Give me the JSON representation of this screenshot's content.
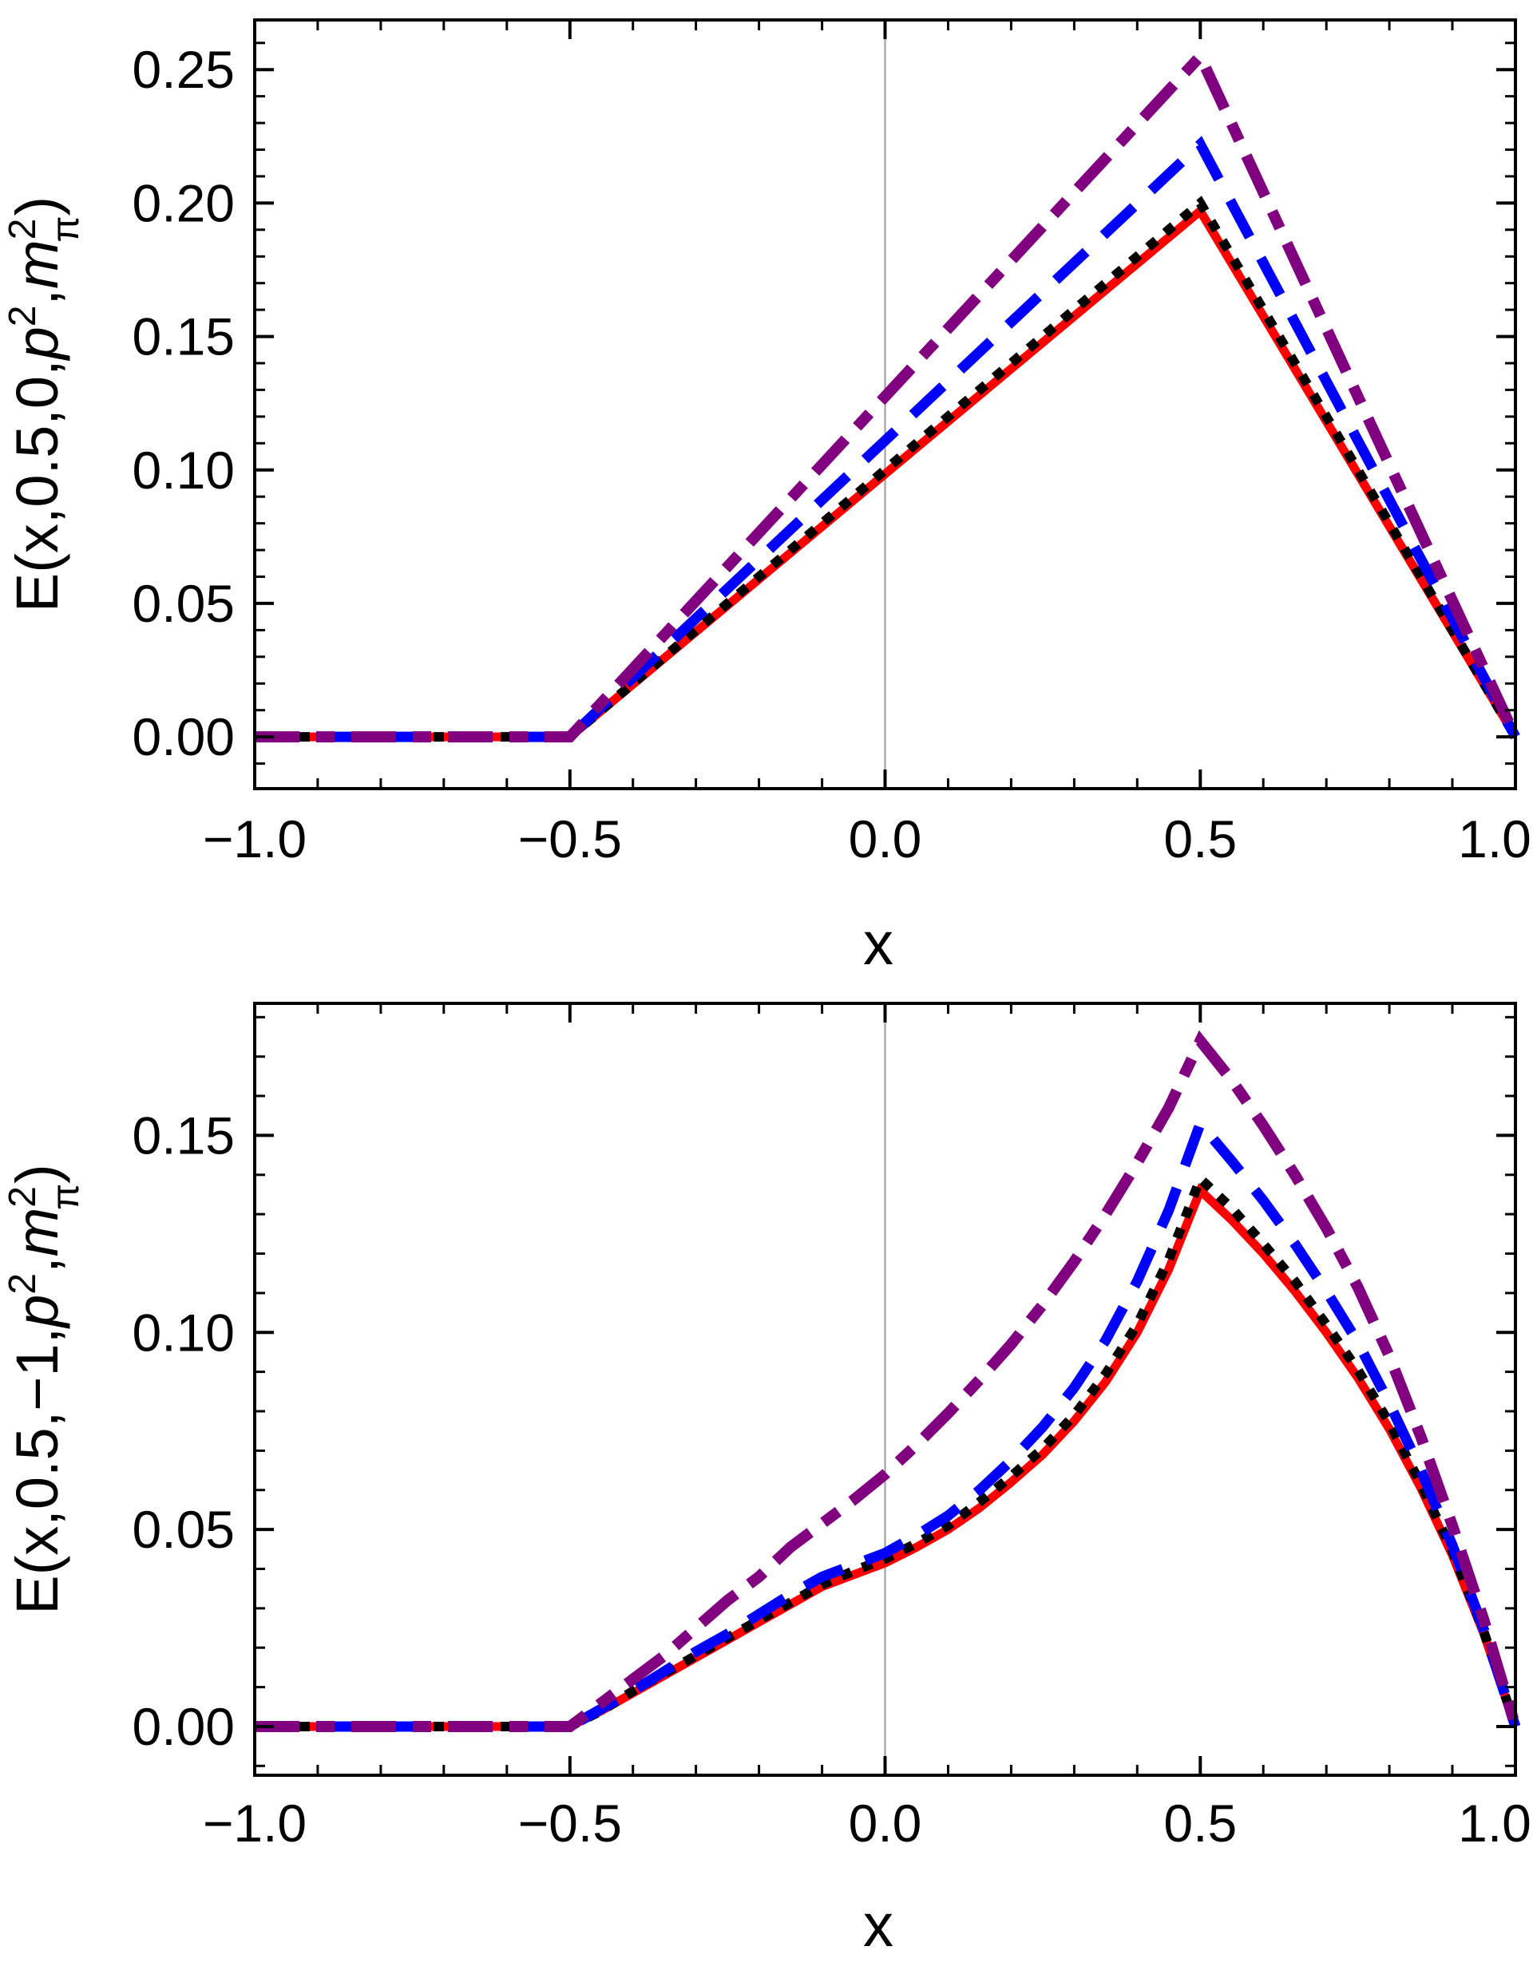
{
  "figure": {
    "background": "#ffffff",
    "grid_color": "#9a9a9a",
    "axis_color": "#000000"
  },
  "chart_data": [
    {
      "type": "line",
      "title": "",
      "xlabel": "x",
      "ylabel_text": "E(x,0.5,0,p^2,m_pi^2)",
      "ylabel_parts": [
        {
          "t": "E(x,0.5,0,"
        },
        {
          "t": "p",
          "i": true
        },
        {
          "t": "2",
          "sup": true
        },
        {
          "t": ","
        },
        {
          "t": "m",
          "i": true
        },
        {
          "t": "2",
          "sup": true
        },
        {
          "t": "π",
          "subprev": true
        },
        {
          "t": ")"
        }
      ],
      "xlim": [
        -1,
        1
      ],
      "ylim": [
        -0.0194,
        0.2686
      ],
      "grid_on": false,
      "grid_x": [
        0
      ],
      "legend": "none",
      "xticks": {
        "values": [
          -1,
          -0.5,
          0,
          0.5,
          1
        ],
        "labels": [
          "−1.0",
          "−0.5",
          "0.0",
          "0.5",
          "1.0"
        ],
        "minor_step": 0.1
      },
      "yticks": {
        "values": [
          0,
          0.05,
          0.1,
          0.15,
          0.2,
          0.25
        ],
        "labels": [
          "0.00",
          "0.05",
          "0.10",
          "0.15",
          "0.20",
          "0.25"
        ],
        "minor_step": 0.01
      },
      "series": [
        {
          "name": "red-solid",
          "color": "#fe0000",
          "style": "solid",
          "width": 11,
          "points": [
            [
              -1,
              0
            ],
            [
              -0.75,
              0
            ],
            [
              -0.5,
              0
            ],
            [
              0.5,
              0.197
            ],
            [
              1,
              0
            ]
          ]
        },
        {
          "name": "black-dotted",
          "color": "#000000",
          "style": "dotted",
          "width": 12,
          "points": [
            [
              -1,
              0
            ],
            [
              -0.75,
              0
            ],
            [
              -0.5,
              0
            ],
            [
              0.5,
              0.2
            ],
            [
              1,
              0
            ]
          ]
        },
        {
          "name": "blue-dashed",
          "color": "#0000fe",
          "style": "dashed",
          "width": 13,
          "points": [
            [
              -1,
              0
            ],
            [
              -0.75,
              0
            ],
            [
              -0.5,
              0
            ],
            [
              0.5,
              0.222
            ],
            [
              1,
              0
            ]
          ]
        },
        {
          "name": "purple-dashdot",
          "color": "#800080",
          "style": "dash-dot",
          "width": 14,
          "points": [
            [
              -1,
              0
            ],
            [
              -0.75,
              0
            ],
            [
              -0.5,
              0
            ],
            [
              0.5,
              0.255
            ],
            [
              1,
              0
            ]
          ]
        }
      ]
    },
    {
      "type": "line",
      "title": "",
      "xlabel": "x",
      "ylabel_text": "E(x,0.5,-1,p^2,m_pi^2)",
      "ylabel_parts": [
        {
          "t": "E(x,0.5,−1,"
        },
        {
          "t": "p",
          "i": true
        },
        {
          "t": "2",
          "sup": true
        },
        {
          "t": ","
        },
        {
          "t": "m",
          "i": true
        },
        {
          "t": "2",
          "sup": true
        },
        {
          "t": "π",
          "subprev": true
        },
        {
          "t": ")"
        }
      ],
      "xlim": [
        -1,
        1
      ],
      "ylim": [
        -0.01236,
        0.1835
      ],
      "grid_on": false,
      "grid_x": [
        0
      ],
      "legend": "none",
      "xticks": {
        "values": [
          -1,
          -0.5,
          0,
          0.5,
          1
        ],
        "labels": [
          "−1.0",
          "−0.5",
          "0.0",
          "0.5",
          "1.0"
        ],
        "minor_step": 0.1
      },
      "yticks": {
        "values": [
          0,
          0.05,
          0.1,
          0.15
        ],
        "labels": [
          "0.00",
          "0.05",
          "0.10",
          "0.15"
        ],
        "minor_step": 0.01
      },
      "series": [
        {
          "name": "red-solid",
          "color": "#fe0000",
          "style": "solid",
          "width": 11,
          "points": [
            [
              -1,
              0
            ],
            [
              -0.75,
              0
            ],
            [
              -0.5,
              0
            ],
            [
              -0.45,
              0.004
            ],
            [
              -0.4,
              0.0085
            ],
            [
              -0.35,
              0.013
            ],
            [
              -0.3,
              0.0175
            ],
            [
              -0.25,
              0.022
            ],
            [
              -0.2,
              0.0265
            ],
            [
              -0.15,
              0.031
            ],
            [
              -0.1,
              0.0355
            ],
            [
              -0.05,
              0.0385
            ],
            [
              0,
              0.0415
            ],
            [
              0.05,
              0.0455
            ],
            [
              0.1,
              0.05
            ],
            [
              0.15,
              0.0555
            ],
            [
              0.2,
              0.062
            ],
            [
              0.25,
              0.069
            ],
            [
              0.3,
              0.0775
            ],
            [
              0.35,
              0.0875
            ],
            [
              0.4,
              0.1
            ],
            [
              0.45,
              0.116
            ],
            [
              0.5,
              0.136
            ],
            [
              0.55,
              0.1285
            ],
            [
              0.6,
              0.12
            ],
            [
              0.65,
              0.1105
            ],
            [
              0.7,
              0.1
            ],
            [
              0.75,
              0.0885
            ],
            [
              0.8,
              0.0755
            ],
            [
              0.85,
              0.0605
            ],
            [
              0.9,
              0.0435
            ],
            [
              0.95,
              0.0235
            ],
            [
              1,
              0
            ]
          ]
        },
        {
          "name": "black-dotted",
          "color": "#000000",
          "style": "dotted",
          "width": 12,
          "points": [
            [
              -1,
              0
            ],
            [
              -0.75,
              0
            ],
            [
              -0.5,
              0
            ],
            [
              -0.45,
              0.004
            ],
            [
              -0.4,
              0.009
            ],
            [
              -0.35,
              0.0135
            ],
            [
              -0.3,
              0.018
            ],
            [
              -0.25,
              0.0225
            ],
            [
              -0.2,
              0.027
            ],
            [
              -0.15,
              0.0315
            ],
            [
              -0.1,
              0.036
            ],
            [
              -0.05,
              0.0395
            ],
            [
              0,
              0.0425
            ],
            [
              0.05,
              0.0465
            ],
            [
              0.1,
              0.051
            ],
            [
              0.15,
              0.057
            ],
            [
              0.2,
              0.0635
            ],
            [
              0.25,
              0.0705
            ],
            [
              0.3,
              0.079
            ],
            [
              0.35,
              0.0895
            ],
            [
              0.4,
              0.102
            ],
            [
              0.45,
              0.1185
            ],
            [
              0.5,
              0.139
            ],
            [
              0.55,
              0.1315
            ],
            [
              0.6,
              0.1225
            ],
            [
              0.65,
              0.113
            ],
            [
              0.7,
              0.102
            ],
            [
              0.75,
              0.0905
            ],
            [
              0.8,
              0.077
            ],
            [
              0.85,
              0.0615
            ],
            [
              0.9,
              0.0445
            ],
            [
              0.95,
              0.024
            ],
            [
              1,
              0
            ]
          ]
        },
        {
          "name": "blue-dashed",
          "color": "#0000fe",
          "style": "dashed",
          "width": 13,
          "points": [
            [
              -1,
              0
            ],
            [
              -0.75,
              0
            ],
            [
              -0.5,
              0
            ],
            [
              -0.45,
              0.0045
            ],
            [
              -0.4,
              0.009
            ],
            [
              -0.35,
              0.014
            ],
            [
              -0.3,
              0.019
            ],
            [
              -0.25,
              0.0235
            ],
            [
              -0.2,
              0.0285
            ],
            [
              -0.15,
              0.0335
            ],
            [
              -0.1,
              0.038
            ],
            [
              -0.05,
              0.041
            ],
            [
              0,
              0.044
            ],
            [
              0.05,
              0.0485
            ],
            [
              0.1,
              0.0535
            ],
            [
              0.15,
              0.06
            ],
            [
              0.2,
              0.0675
            ],
            [
              0.25,
              0.076
            ],
            [
              0.3,
              0.086
            ],
            [
              0.35,
              0.098
            ],
            [
              0.4,
              0.113
            ],
            [
              0.45,
              0.131
            ],
            [
              0.5,
              0.153
            ],
            [
              0.55,
              0.1435
            ],
            [
              0.6,
              0.1335
            ],
            [
              0.65,
              0.1225
            ],
            [
              0.7,
              0.1105
            ],
            [
              0.75,
              0.0975
            ],
            [
              0.8,
              0.082
            ],
            [
              0.85,
              0.065
            ],
            [
              0.9,
              0.046
            ],
            [
              0.95,
              0.0245
            ],
            [
              1,
              0
            ]
          ]
        },
        {
          "name": "purple-dashdot",
          "color": "#800080",
          "style": "dash-dot",
          "width": 14,
          "points": [
            [
              -1,
              0
            ],
            [
              -0.75,
              0
            ],
            [
              -0.5,
              0
            ],
            [
              -0.45,
              0.006
            ],
            [
              -0.4,
              0.012
            ],
            [
              -0.35,
              0.018
            ],
            [
              -0.3,
              0.025
            ],
            [
              -0.25,
              0.032
            ],
            [
              -0.2,
              0.038
            ],
            [
              -0.15,
              0.0455
            ],
            [
              -0.1,
              0.0515
            ],
            [
              -0.05,
              0.0575
            ],
            [
              0,
              0.064
            ],
            [
              0.05,
              0.0715
            ],
            [
              0.1,
              0.0795
            ],
            [
              0.15,
              0.088
            ],
            [
              0.2,
              0.097
            ],
            [
              0.25,
              0.107
            ],
            [
              0.3,
              0.118
            ],
            [
              0.35,
              0.13
            ],
            [
              0.4,
              0.143
            ],
            [
              0.45,
              0.157
            ],
            [
              0.5,
              0.174
            ],
            [
              0.55,
              0.164
            ],
            [
              0.6,
              0.1525
            ],
            [
              0.65,
              0.14
            ],
            [
              0.7,
              0.1265
            ],
            [
              0.75,
              0.1115
            ],
            [
              0.8,
              0.094
            ],
            [
              0.85,
              0.0735
            ],
            [
              0.9,
              0.051
            ],
            [
              0.95,
              0.027
            ],
            [
              1,
              0
            ]
          ]
        }
      ]
    }
  ]
}
